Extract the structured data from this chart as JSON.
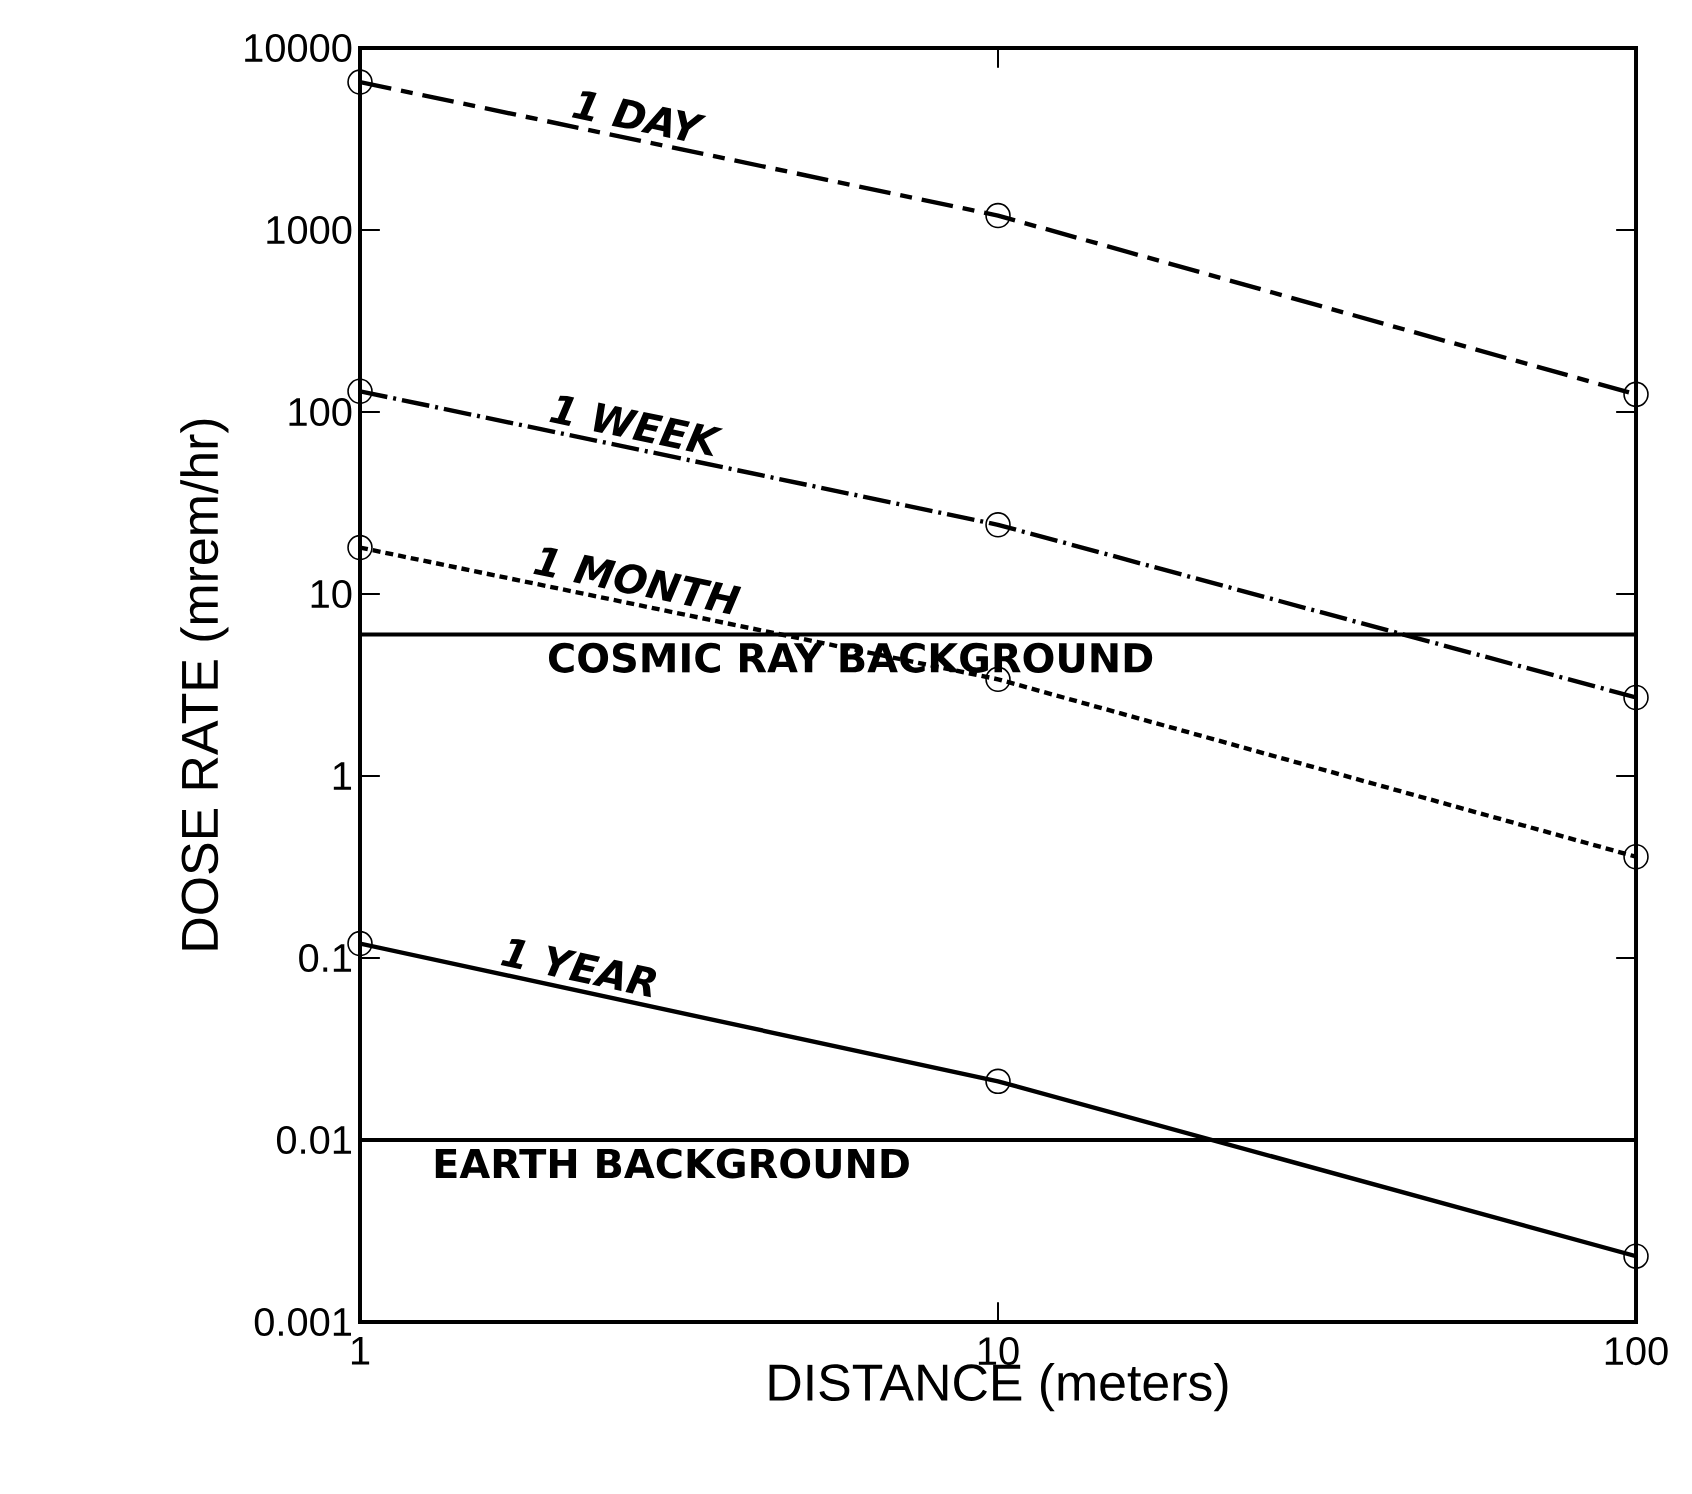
{
  "chart_data": {
    "type": "line",
    "xlabel": "DISTANCE (meters)",
    "ylabel": "DOSE RATE (mrem/hr)",
    "log": "xy",
    "x": [
      1,
      10,
      100
    ],
    "series": [
      {
        "name": "1 DAY",
        "color": "#000000",
        "line_style": "dashed",
        "values": [
          6500,
          1200,
          125
        ]
      },
      {
        "name": "1 WEEK",
        "color": "#000000",
        "line_style": "dashdot",
        "values": [
          130,
          24,
          2.7
        ]
      },
      {
        "name": "1 MONTH",
        "color": "#000000",
        "line_style": "dotted",
        "values": [
          18,
          3.4,
          0.36
        ]
      },
      {
        "name": "1 YEAR",
        "color": "#000000",
        "line_style": "solid",
        "values": [
          0.12,
          0.021,
          0.0023
        ]
      }
    ],
    "marker": "circle",
    "xlim": [
      1,
      100
    ],
    "ylim": [
      0.001,
      10000
    ],
    "xticks": [
      1,
      10,
      100
    ],
    "yticks": [
      0.001,
      0.01,
      0.1,
      1,
      10,
      100,
      1000,
      10000
    ],
    "ref_lines": [
      {
        "axis": "y",
        "value": 6,
        "label": "COSMIC RAY BACKGROUND"
      },
      {
        "axis": "y",
        "value": 0.01,
        "label": "EARTH BACKGROUND"
      }
    ]
  }
}
